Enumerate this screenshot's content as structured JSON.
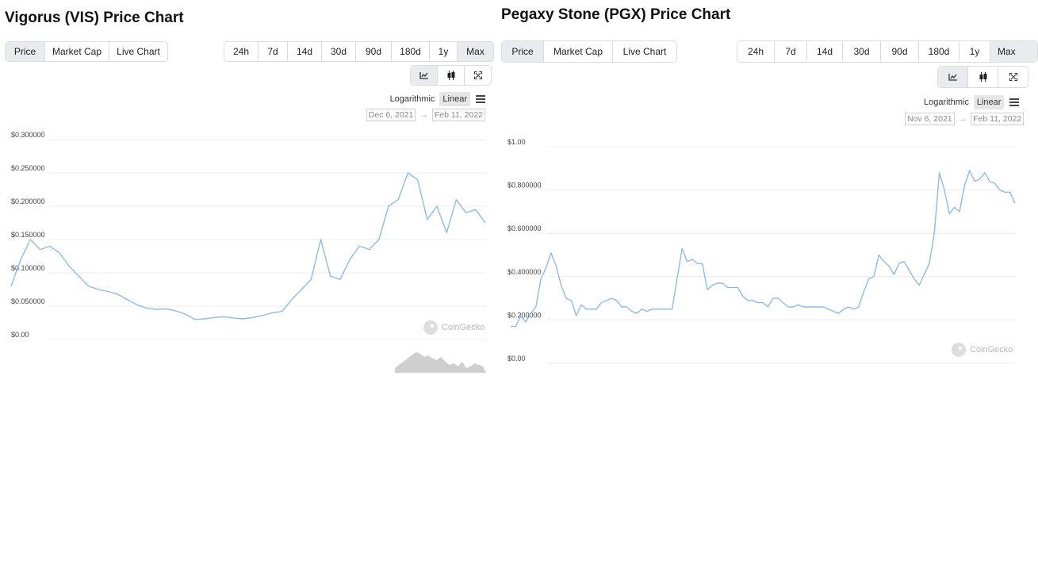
{
  "left": {
    "title": "Vigorus (VIS) Price Chart",
    "tabs": [
      "Price",
      "Market Cap",
      "Live Chart"
    ],
    "ranges": [
      "24h",
      "7d",
      "14d",
      "30d",
      "90d",
      "180d",
      "1y",
      "Max"
    ],
    "active_range": "Max",
    "chart_icons": [
      "line-chart-icon",
      "candlestick-icon",
      "fullscreen-icon"
    ],
    "scale_log": "Logarithmic",
    "scale_linear": "Linear",
    "date_from": "Dec 6, 2021",
    "date_to": "Feb 11, 2022",
    "watermark": "CoinGecko",
    "y_ticks": [
      "$0.300000",
      "$0.250000",
      "$0.200000",
      "$0.150000",
      "$0.100000",
      "$0.050000",
      "$0.00"
    ]
  },
  "right": {
    "title": "Pegaxy Stone (PGX) Price Chart",
    "tabs": [
      "Price",
      "Market Cap",
      "Live Chart"
    ],
    "ranges": [
      "24h",
      "7d",
      "14d",
      "30d",
      "90d",
      "180d",
      "1y",
      "Max"
    ],
    "active_range": "Max",
    "chart_icons": [
      "line-chart-icon",
      "candlestick-icon",
      "fullscreen-icon"
    ],
    "scale_log": "Logarithmic",
    "scale_linear": "Linear",
    "date_from": "Nov 6, 2021",
    "date_to": "Feb 11, 2022",
    "watermark": "CoinGecko",
    "y_ticks": [
      "$1.00",
      "$0.800000",
      "$0.600000",
      "$0.400000",
      "$0.200000",
      "$0.00"
    ]
  },
  "colors": {
    "line": "#8bbbe9",
    "grid": "#ececec",
    "active": "#e9ebee",
    "volume": "#cfcfcf"
  },
  "chart_data": [
    {
      "type": "line",
      "name": "VIS",
      "ylim": [
        0,
        0.3
      ],
      "x_range": [
        "Dec 6, 2021",
        "Feb 11, 2022"
      ],
      "values": [
        0.08,
        0.12,
        0.15,
        0.135,
        0.14,
        0.13,
        0.11,
        0.095,
        0.08,
        0.075,
        0.072,
        0.068,
        0.06,
        0.052,
        0.047,
        0.045,
        0.046,
        0.043,
        0.038,
        0.03,
        0.031,
        0.033,
        0.034,
        0.032,
        0.031,
        0.033,
        0.036,
        0.04,
        0.042,
        0.06,
        0.075,
        0.09,
        0.15,
        0.095,
        0.09,
        0.12,
        0.14,
        0.135,
        0.15,
        0.2,
        0.21,
        0.25,
        0.24,
        0.18,
        0.2,
        0.16,
        0.21,
        0.19,
        0.195,
        0.175
      ]
    },
    {
      "type": "line",
      "name": "PGX",
      "ylim": [
        0,
        1.0
      ],
      "x_range": [
        "Nov 6, 2021",
        "Feb 11, 2022"
      ],
      "values": [
        0.17,
        0.17,
        0.22,
        0.19,
        0.23,
        0.26,
        0.39,
        0.44,
        0.51,
        0.45,
        0.36,
        0.3,
        0.29,
        0.22,
        0.27,
        0.25,
        0.25,
        0.25,
        0.28,
        0.29,
        0.3,
        0.29,
        0.26,
        0.26,
        0.24,
        0.23,
        0.25,
        0.24,
        0.25,
        0.25,
        0.25,
        0.25,
        0.25,
        0.39,
        0.53,
        0.47,
        0.48,
        0.46,
        0.46,
        0.34,
        0.36,
        0.37,
        0.37,
        0.35,
        0.35,
        0.35,
        0.31,
        0.29,
        0.29,
        0.28,
        0.28,
        0.26,
        0.3,
        0.3,
        0.28,
        0.26,
        0.26,
        0.27,
        0.26,
        0.26,
        0.26,
        0.26,
        0.26,
        0.25,
        0.24,
        0.23,
        0.25,
        0.26,
        0.25,
        0.26,
        0.33,
        0.39,
        0.4,
        0.5,
        0.47,
        0.45,
        0.41,
        0.46,
        0.47,
        0.43,
        0.39,
        0.36,
        0.41,
        0.46,
        0.6,
        0.88,
        0.8,
        0.69,
        0.72,
        0.7,
        0.82,
        0.89,
        0.84,
        0.85,
        0.88,
        0.84,
        0.83,
        0.8,
        0.79,
        0.79,
        0.74
      ]
    }
  ]
}
